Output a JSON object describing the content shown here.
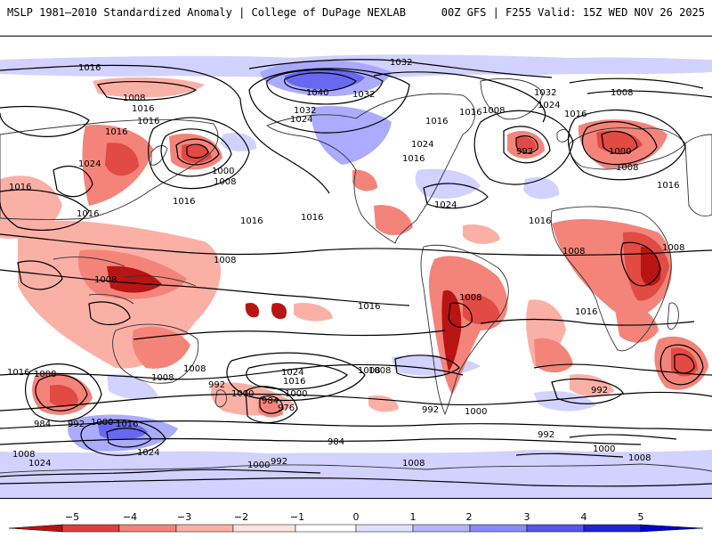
{
  "header": {
    "left": "MSLP 1981–2010 Standardized Anomaly | College of DuPage NEXLAB",
    "right": "00Z GFS | F255 Valid: 15Z WED NOV 26 2025"
  },
  "map_colors": {
    "ocean": "#ffffff",
    "coast": "#333333",
    "contour": "#000000",
    "neg_light": "#fbb0a6",
    "neg_mid": "#f4847a",
    "neg_strong": "#e24a44",
    "neg_max": "#b81414",
    "pos_light": "#cfd0ff",
    "pos_mid": "#a6a6ff",
    "pos_strong": "#6464ef"
  },
  "isobar_labels": [
    "1016",
    "1008",
    "1016",
    "1016",
    "1024",
    "1016",
    "1016",
    "1000",
    "1008",
    "1016",
    "1016",
    "1008",
    "1016",
    "1016",
    "1008",
    "1032",
    "1040",
    "1032",
    "1032",
    "1024",
    "1016",
    "1024",
    "1016",
    "1024",
    "1016",
    "1008",
    "1016",
    "1032",
    "1024",
    "1016",
    "1008",
    "992",
    "1000",
    "1008",
    "1016",
    "1008",
    "1008",
    "1016",
    "1008",
    "1016",
    "1008",
    "1008",
    "984",
    "992",
    "1000",
    "1016",
    "1024",
    "992",
    "1000",
    "1008",
    "992",
    "984",
    "976",
    "1008",
    "1024",
    "1016",
    "1000",
    "1016",
    "1008",
    "984",
    "992",
    "1000",
    "1008",
    "1024",
    "1000",
    "992",
    "1008",
    "1000",
    "1008",
    "992"
  ],
  "colorbar": {
    "ticks": [
      "−5",
      "−4",
      "−3",
      "−2",
      "−1",
      "0",
      "1",
      "2",
      "3",
      "4",
      "5"
    ],
    "colors": [
      "#b81414",
      "#e23c3c",
      "#f4847a",
      "#fbb0a6",
      "#fde2dd",
      "#ffffff",
      "#e0e0ff",
      "#b4b4ff",
      "#8888f8",
      "#5555ee",
      "#2222dd",
      "#0000cc"
    ]
  }
}
